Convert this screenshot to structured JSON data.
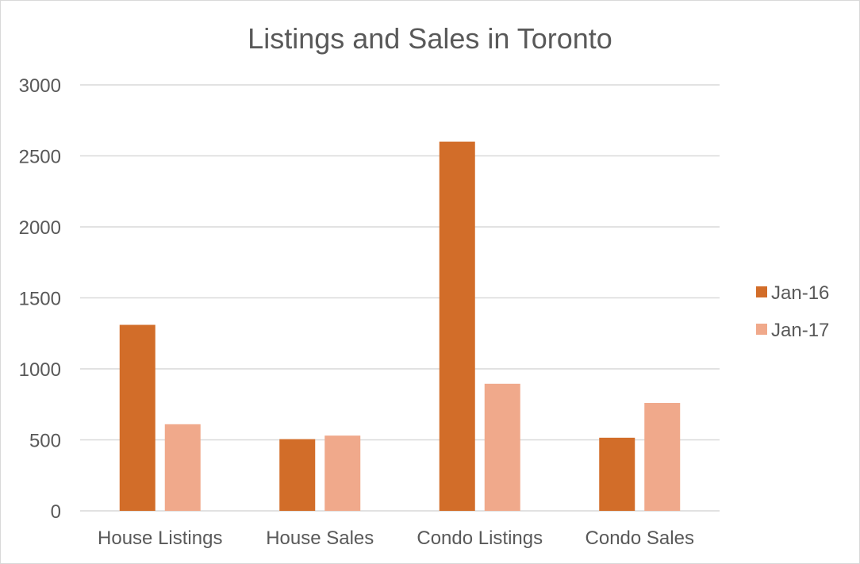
{
  "chart_data": {
    "type": "bar",
    "title": "Listings and Sales in Toronto",
    "xlabel": "",
    "ylabel": "",
    "ylim": [
      0,
      3000
    ],
    "yticks": [
      0,
      500,
      1000,
      1500,
      2000,
      2500,
      3000
    ],
    "categories": [
      "House Listings",
      "House Sales",
      "Condo Listings",
      "Condo Sales"
    ],
    "series": [
      {
        "name": "Jan-16",
        "color": "#d26d29",
        "values": [
          1310,
          505,
          2600,
          515
        ]
      },
      {
        "name": "Jan-17",
        "color": "#f0a98b",
        "values": [
          610,
          530,
          895,
          760
        ]
      }
    ],
    "grid": true,
    "legend_position": "right"
  }
}
